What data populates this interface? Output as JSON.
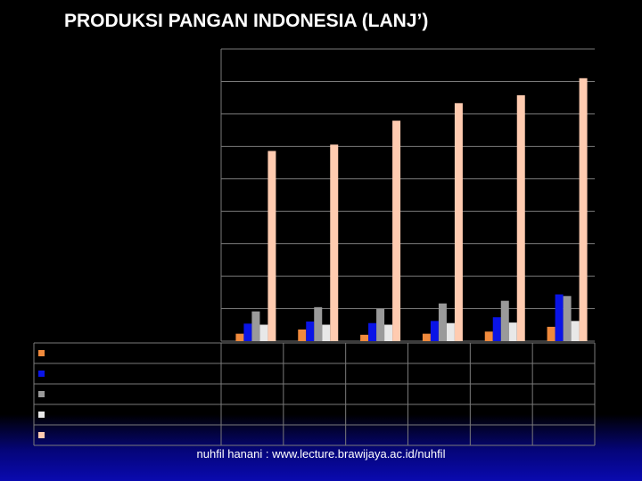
{
  "title": "PRODUKSI PANGAN INDONESIA (LANJ’)",
  "footer": "nuhfil hanani : www.lecture.brawijaya.ac.id/nuhfil",
  "chart_data": {
    "type": "bar",
    "title": "PRODUKSI PANGAN INDONESIA (LANJ’)",
    "categories": [
      "",
      "",
      "",
      "",
      "",
      ""
    ],
    "ylim": [
      0,
      55000
    ],
    "grid": true,
    "legend": "data-table",
    "series": [
      {
        "color": "#f08a3c",
        "values": [
          1400,
          2200,
          1200,
          1400,
          1800,
          2700
        ]
      },
      {
        "color": "#0a14e6",
        "values": [
          3300,
          3700,
          3400,
          3800,
          4500,
          8800
        ]
      },
      {
        "color": "#9a9a9a",
        "values": [
          5600,
          6400,
          6100,
          7100,
          7600,
          8500
        ]
      },
      {
        "color": "#e8e8e8",
        "values": [
          3100,
          3100,
          3100,
          3400,
          3500,
          3800
        ]
      },
      {
        "color": "#ffcbb0",
        "values": [
          35800,
          37000,
          41500,
          44800,
          46300,
          49500
        ]
      }
    ]
  }
}
